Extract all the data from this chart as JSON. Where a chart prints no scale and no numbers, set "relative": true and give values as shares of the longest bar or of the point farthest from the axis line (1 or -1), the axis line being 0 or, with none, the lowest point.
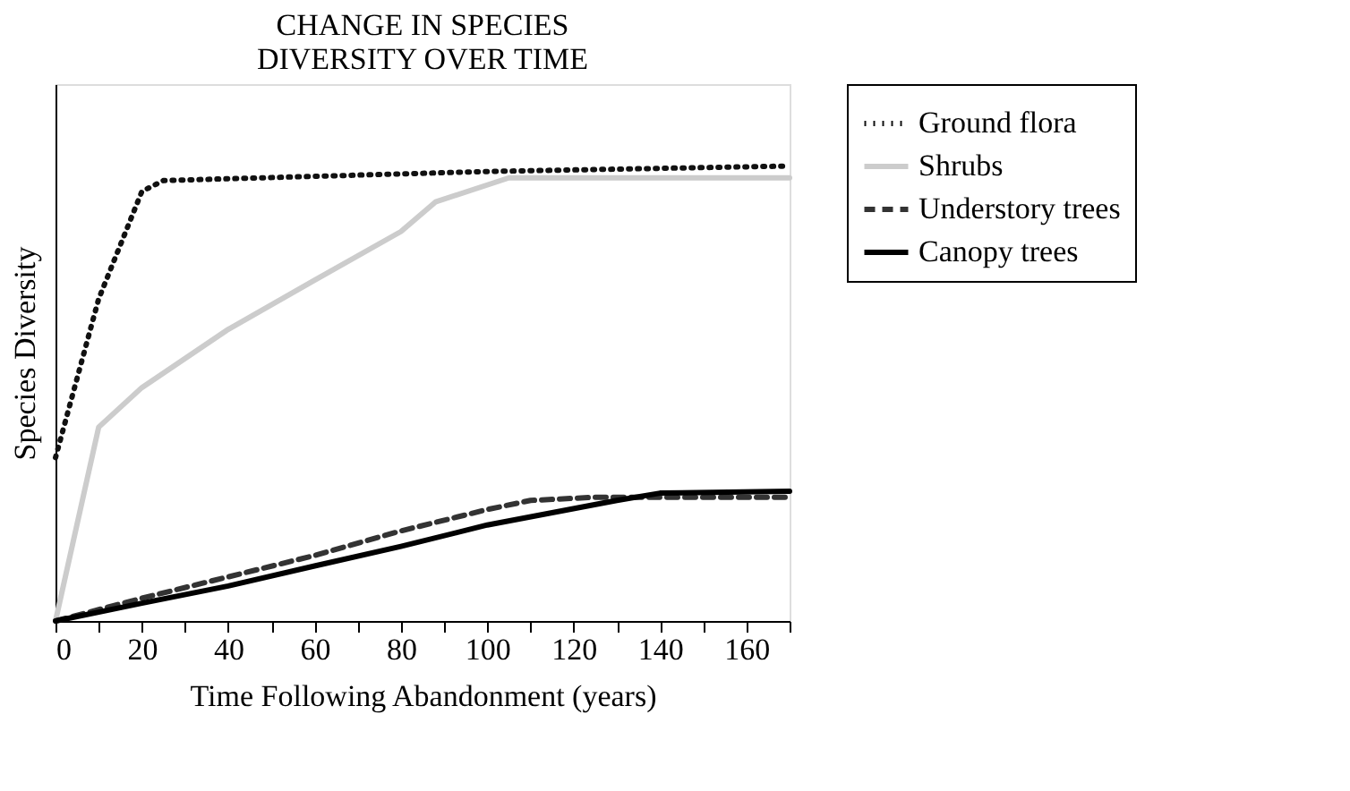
{
  "chart_data": {
    "type": "line",
    "title": "CHANGE IN SPECIES\nDIVERSITY OVER TIME",
    "xlabel": "Time Following Abandonment (years)",
    "ylabel": "Species Diversity",
    "relative": true,
    "xlim": [
      0,
      170
    ],
    "xticks": [
      0,
      {
        "value": 10,
        "label": null
      },
      20,
      {
        "value": 30,
        "label": null
      },
      40,
      {
        "value": 50,
        "label": null
      },
      60,
      {
        "value": 70,
        "label": null
      },
      80,
      {
        "value": 90,
        "label": null
      },
      100,
      {
        "value": 110,
        "label": null
      },
      120,
      {
        "value": 130,
        "label": null
      },
      140,
      {
        "value": 150,
        "label": null
      },
      160,
      {
        "value": 170,
        "label": null
      }
    ],
    "legend": "right",
    "grid": false,
    "series": [
      {
        "name": "Ground flora",
        "color": "#111111",
        "line_style": "dotted",
        "x": [
          0,
          10,
          20,
          25,
          100,
          170
        ],
        "values": [
          0.359,
          0.708,
          0.944,
          0.968,
          0.988,
          1
        ]
      },
      {
        "name": "Shrubs",
        "color": "#cccccc",
        "line_style": "solid",
        "x": [
          0,
          10,
          20,
          40,
          60,
          80,
          88,
          105,
          170
        ],
        "values": [
          0,
          0.426,
          0.513,
          0.641,
          0.749,
          0.856,
          0.921,
          0.974,
          0.974
        ]
      },
      {
        "name": "Understory trees",
        "color": "#333333",
        "line_style": "dashed",
        "x": [
          0,
          20,
          40,
          60,
          80,
          100,
          110,
          125,
          170
        ],
        "values": [
          0,
          0.05,
          0.097,
          0.144,
          0.198,
          0.245,
          0.265,
          0.272,
          0.272
        ]
      },
      {
        "name": "Canopy trees",
        "color": "#000000",
        "line_style": "solid",
        "x": [
          0,
          20,
          40,
          60,
          80,
          100,
          130,
          140,
          170
        ],
        "values": [
          0,
          0.039,
          0.077,
          0.121,
          0.164,
          0.211,
          0.265,
          0.281,
          0.285
        ]
      }
    ]
  }
}
